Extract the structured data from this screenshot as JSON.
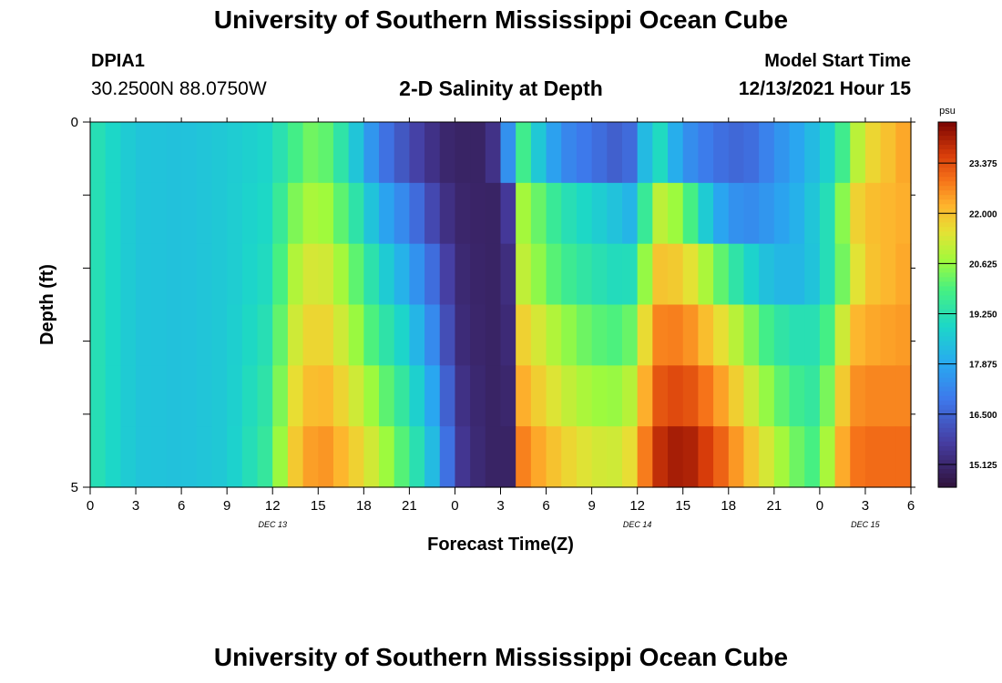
{
  "header": {
    "title": "University of Southern Mississippi Ocean Cube",
    "station": "DPIA1",
    "coords": "30.2500N  88.0750W",
    "chart_title": "2-D Salinity at Depth",
    "model_start_label": "Model Start Time",
    "model_start_value": "12/13/2021 Hour 15"
  },
  "footer": {
    "title": "University of Southern Mississippi Ocean Cube"
  },
  "chart_data": {
    "type": "heatmap",
    "title": "2-D Salinity at Depth",
    "xlabel": "Forecast Time(Z)",
    "ylabel": "Depth (ft)",
    "x_tick_labels": [
      "0",
      "3",
      "6",
      "9",
      "12",
      "15",
      "18",
      "21",
      "0",
      "3",
      "6",
      "9",
      "12",
      "15",
      "18",
      "21",
      "0",
      "3",
      "6"
    ],
    "day_labels": [
      {
        "text": "DEC 13",
        "tick_index": 4
      },
      {
        "text": "DEC 14",
        "tick_index": 12
      },
      {
        "text": "DEC 15",
        "tick_index": 17
      }
    ],
    "y_tick_labels": [
      "0",
      "5"
    ],
    "ylim": [
      0,
      5
    ],
    "colorbar": {
      "unit": "psu",
      "min": 14.5,
      "max": 24.5,
      "tick_labels": [
        "15.125",
        "16.500",
        "17.875",
        "19.250",
        "20.625",
        "22.000",
        "23.375"
      ],
      "tick_values": [
        15.125,
        16.5,
        17.875,
        19.25,
        20.625,
        22.0,
        23.375
      ]
    },
    "time_step_hours": 1,
    "depth_layers_ft": [
      0,
      1,
      2,
      3,
      4,
      5
    ],
    "time_knots_hours": [
      0,
      3,
      6,
      9,
      12,
      13,
      15,
      17,
      19,
      21,
      23,
      24,
      26,
      27,
      27.5,
      28,
      29,
      31,
      33,
      35,
      36,
      37,
      39,
      41,
      43,
      45,
      47,
      48,
      49,
      50,
      51,
      54
    ],
    "values": [
      [
        19.3,
        18.5,
        18.4,
        18.6,
        18.9,
        19.6,
        20.5,
        19.0,
        17.0,
        16.0,
        15.2,
        15.0,
        15.0,
        15.8,
        17.4,
        20.5,
        19.0,
        17.3,
        16.8,
        16.3,
        17.0,
        19.5,
        17.5,
        16.8,
        16.5,
        17.3,
        18.0,
        18.5,
        19.0,
        20.5,
        21.5,
        22.5
      ],
      [
        19.3,
        18.5,
        18.4,
        18.6,
        19.0,
        20.2,
        21.0,
        19.8,
        18.0,
        17.0,
        15.6,
        15.1,
        15.0,
        15.0,
        15.6,
        21.0,
        20.5,
        19.3,
        18.8,
        18.3,
        18.0,
        21.2,
        20.5,
        18.0,
        17.2,
        17.6,
        18.2,
        18.8,
        19.5,
        21.5,
        22.0,
        22.3
      ],
      [
        19.3,
        18.5,
        18.4,
        18.6,
        19.1,
        20.7,
        21.5,
        20.5,
        18.9,
        17.8,
        16.3,
        15.2,
        15.0,
        15.0,
        15.3,
        21.3,
        20.8,
        19.8,
        19.3,
        19.0,
        19.2,
        22.0,
        21.8,
        20.5,
        19.0,
        18.2,
        18.2,
        18.7,
        19.6,
        21.0,
        21.9,
        22.4
      ],
      [
        19.3,
        18.5,
        18.4,
        18.6,
        19.3,
        21.0,
        21.9,
        21.0,
        19.6,
        18.6,
        16.8,
        15.3,
        15.0,
        15.0,
        15.2,
        22.0,
        21.5,
        20.7,
        20.1,
        19.9,
        20.5,
        22.7,
        22.8,
        21.8,
        20.7,
        19.5,
        19.1,
        19.3,
        20.4,
        22.0,
        22.3,
        22.5
      ],
      [
        19.3,
        18.5,
        18.4,
        18.6,
        19.5,
        21.3,
        22.3,
        21.5,
        20.4,
        19.2,
        17.4,
        15.5,
        15.0,
        15.0,
        15.1,
        22.5,
        22.0,
        21.2,
        20.7,
        20.6,
        21.3,
        23.2,
        23.5,
        22.7,
        21.5,
        20.3,
        19.5,
        19.5,
        21.2,
        22.5,
        22.7,
        22.7
      ],
      [
        19.3,
        18.5,
        18.4,
        18.6,
        19.7,
        21.6,
        22.7,
        22.0,
        21.0,
        19.7,
        17.8,
        15.7,
        15.0,
        15.0,
        15.0,
        23.0,
        22.5,
        21.8,
        21.3,
        21.2,
        21.9,
        23.7,
        24.2,
        23.4,
        22.2,
        21.0,
        20.0,
        19.8,
        21.8,
        22.8,
        23.0,
        23.0
      ]
    ]
  }
}
